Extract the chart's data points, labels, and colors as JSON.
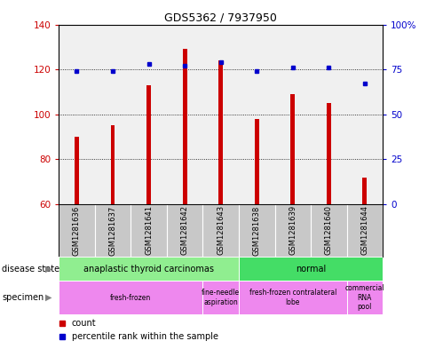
{
  "title": "GDS5362 / 7937950",
  "samples": [
    "GSM1281636",
    "GSM1281637",
    "GSM1281641",
    "GSM1281642",
    "GSM1281643",
    "GSM1281638",
    "GSM1281639",
    "GSM1281640",
    "GSM1281644"
  ],
  "count_values": [
    90,
    95,
    113,
    129,
    124,
    98,
    109,
    105,
    72
  ],
  "percentile_values": [
    74,
    74,
    78,
    77,
    79,
    74,
    76,
    76,
    67
  ],
  "ylim_left": [
    60,
    140
  ],
  "ylim_right": [
    0,
    100
  ],
  "yticks_left": [
    60,
    80,
    100,
    120,
    140
  ],
  "yticks_right": [
    0,
    25,
    50,
    75,
    100
  ],
  "bar_color_red": "#CC0000",
  "bar_color_blue": "#0000CC",
  "tick_label_color_left": "#CC0000",
  "tick_label_color_right": "#0000CC",
  "plot_bg": "#F0F0F0",
  "label_bg": "#C8C8C8",
  "ds_atc_color": "#90EE90",
  "ds_normal_color": "#44DD66",
  "specimen_color": "#EE88EE",
  "bar_width": 0.12,
  "ds_regions": [
    {
      "label": "anaplastic thyroid carcinomas",
      "start": 0,
      "end": 5
    },
    {
      "label": "normal",
      "start": 5,
      "end": 9
    }
  ],
  "ds_colors": [
    "#90EE90",
    "#44DD66"
  ],
  "sp_regions": [
    {
      "label": "fresh-frozen",
      "start": 0,
      "end": 4
    },
    {
      "label": "fine-needle\naspiration",
      "start": 4,
      "end": 5
    },
    {
      "label": "fresh-frozen contralateral\nlobe",
      "start": 5,
      "end": 8
    },
    {
      "label": "commercial\nRNA\npool",
      "start": 8,
      "end": 9
    }
  ],
  "sp_colors": [
    "#EE88EE",
    "#EE88EE",
    "#EE88EE",
    "#EE88EE"
  ]
}
